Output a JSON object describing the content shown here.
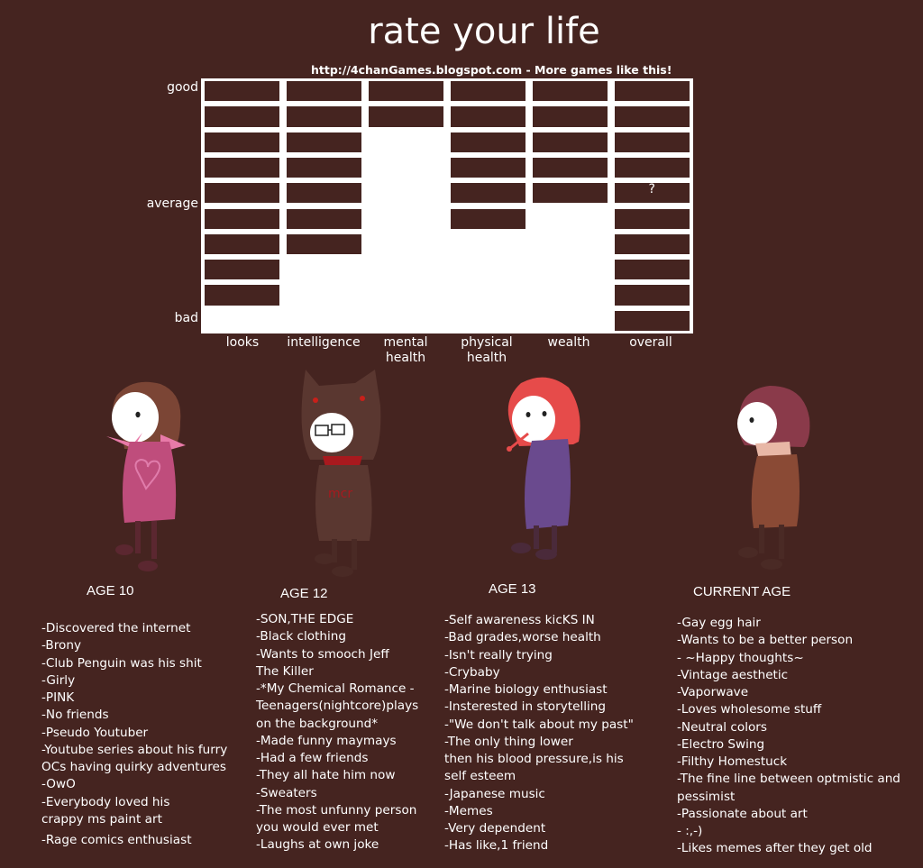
{
  "title": "rate your life",
  "subtitle": "http://4chanGames.blogspot.com - More games like this!",
  "chart_data": {
    "type": "bar",
    "y_labels": [
      "good",
      "average",
      "bad"
    ],
    "categories": [
      "looks",
      "intelligence",
      "mental health",
      "physical health",
      "wealth",
      "overall"
    ],
    "category_lines": [
      [
        "looks"
      ],
      [
        "intelligence"
      ],
      [
        "mental",
        "health"
      ],
      [
        "physical",
        "health"
      ],
      [
        "wealth"
      ],
      [
        "overall"
      ]
    ],
    "values": [
      9,
      7,
      2,
      6,
      5,
      10
    ],
    "ylim": [
      0,
      10
    ],
    "overall_annotation": "?"
  },
  "ages": [
    {
      "label": "AGE 10",
      "items": [
        "-Discovered the internet",
        "-Brony",
        "-Club Penguin was his shit",
        "-Girly",
        "-PINK",
        "-No friends",
        "-Pseudo Youtuber",
        "-Youtube series about his furry",
        "OCs having quirky adventures",
        "-OwO",
        "-Everybody loved his",
        "crappy ms paint art",
        "-Rage comics enthusiast"
      ]
    },
    {
      "label": "AGE 12",
      "items": [
        "-SON,THE EDGE",
        "-Black clothing",
        "-Wants to smooch Jeff",
        "The Killer",
        "-*My Chemical Romance -",
        "Teenagers(nightcore)plays",
        "on the background*",
        "-Made funny maymays",
        "-Had a few friends",
        "-They all hate him now",
        "-Sweaters",
        "-The most unfunny person",
        "you would ever met",
        "-Laughs at own joke"
      ]
    },
    {
      "label": "AGE 13",
      "items": [
        "-Self awareness kicKS IN",
        "-Bad grades,worse health",
        "-Isn't really trying",
        "-Crybaby",
        "-Marine biology enthusiast",
        "-Insterested in storytelling",
        "-\"We don't talk about my past\"",
        "-The only thing lower",
        "then his blood pressure,is his",
        "self esteem",
        "-Japanese music",
        "-Memes",
        "-Very dependent",
        "-Has like,1 friend"
      ]
    },
    {
      "label": "CURRENT AGE",
      "items": [
        "-Gay egg hair",
        "-Wants to be a better person",
        "- ~Happy thoughts~",
        "-Vintage aesthetic",
        "-Vaporwave",
        "-Loves wholesome stuff",
        "-Neutral colors",
        "-Electro Swing",
        "-Filthy Homestuck",
        "-The fine line between optmistic and",
        "pessimist",
        "-Passionate about art",
        "- :,-)",
        "-Likes memes after they get old"
      ]
    }
  ],
  "figure_shirt_text": "mcr",
  "colors": {
    "background": "#452420",
    "chart_bg": "#ffffff",
    "text": "#ffffff"
  }
}
